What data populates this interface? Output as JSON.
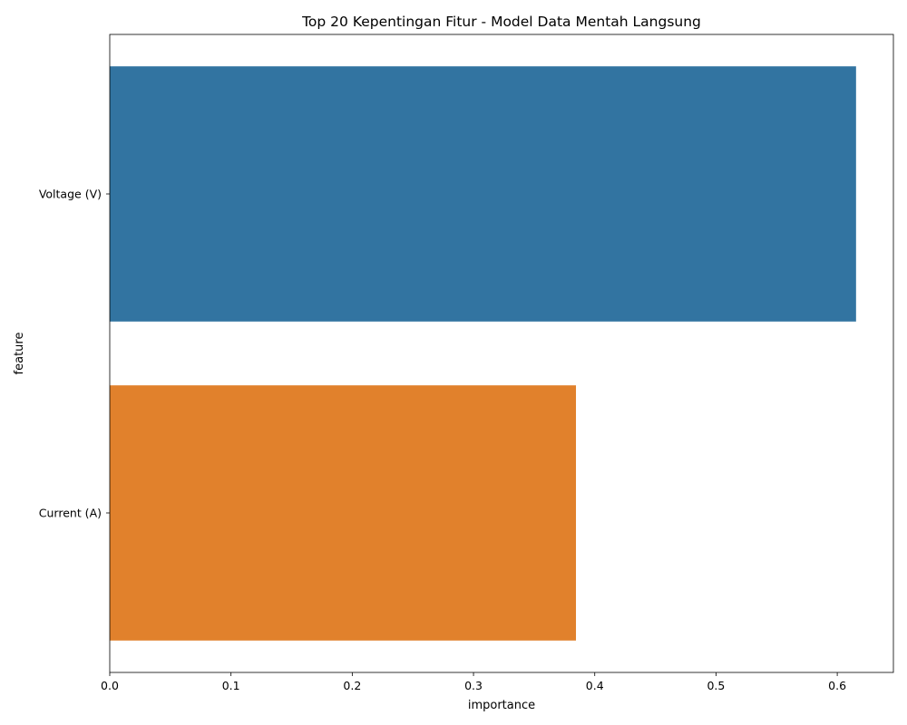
{
  "chart_data": {
    "type": "bar",
    "orientation": "horizontal",
    "title": "Top 20 Kepentingan Fitur - Model Data Mentah Langsung",
    "xlabel": "importance",
    "ylabel": "feature",
    "categories": [
      "Voltage (V)",
      "Current (A)"
    ],
    "values": [
      0.6155,
      0.3845
    ],
    "colors": [
      "#3274a1",
      "#e1812c"
    ],
    "xlim": [
      0,
      0.6463
    ],
    "xticks": [
      0.0,
      0.1,
      0.2,
      0.3,
      0.4,
      0.5,
      0.6
    ],
    "xtick_labels": [
      "0.0",
      "0.1",
      "0.2",
      "0.3",
      "0.4",
      "0.5",
      "0.6"
    ],
    "grid": false,
    "legend": "none"
  }
}
